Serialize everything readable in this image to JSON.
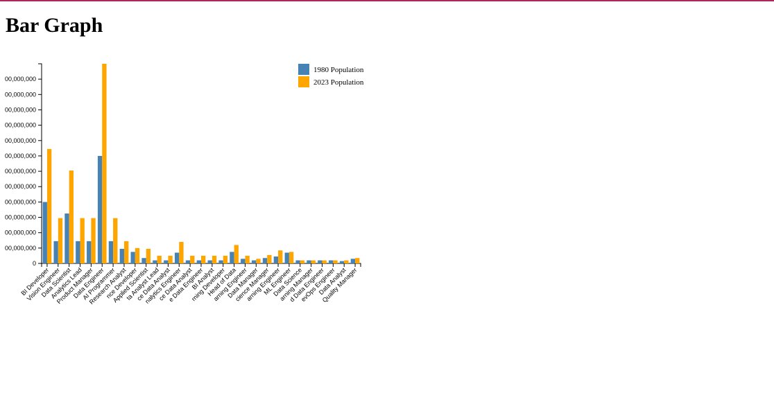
{
  "page": {
    "title": "Bar Graph",
    "accent_color": "#b0265a"
  },
  "chart_data": {
    "type": "bar",
    "title": "",
    "xlabel": "",
    "ylabel": "",
    "ylim": [
      0,
      130000000
    ],
    "y_ticks": [
      0,
      10000000,
      20000000,
      30000000,
      40000000,
      50000000,
      60000000,
      70000000,
      80000000,
      90000000,
      100000000,
      110000000,
      120000000
    ],
    "y_tick_labels": [
      "0",
      "00,000,000",
      "00,000,000",
      "00,000,000",
      "00,000,000",
      "00,000,000",
      "00,000,000",
      "00,000,000",
      "00,000,000",
      "00,000,000",
      "00,000,000",
      "00,000,000",
      "00,000,000"
    ],
    "legend_position": "top-right",
    "categories": [
      "BI Developer",
      "Vision Engineer",
      "Data Scientist",
      "Analytics Lead",
      "Product Manager",
      "Data Engineer",
      "AI Programmer",
      "Research Analyst",
      "nce Developer",
      "Applied Scientist",
      "ta Analyst Lead",
      "ce Data Analyst",
      "nalytics Engineer",
      "ce Data Analyst",
      "e Data Engineer",
      "BI Analyst",
      "rning Developer",
      "Head of Data",
      "arning Engineer",
      "Data Manager",
      "cience Manager",
      "arning Engineer",
      "ML Engineer",
      "Data Science",
      "arning Manager",
      "d Data Engineer",
      "evOps Engineer",
      "Data Analyst",
      "Quality Manager"
    ],
    "series": [
      {
        "name": "1980 Population",
        "color": "#4682b4",
        "values": [
          40000000,
          14500000,
          32500000,
          14500000,
          14500000,
          70000000,
          14500000,
          9500000,
          7500000,
          3500000,
          2000000,
          2000000,
          7000000,
          2000000,
          2000000,
          2000000,
          2000000,
          7500000,
          3000000,
          2000000,
          3500000,
          4500000,
          7000000,
          2000000,
          2000000,
          2000000,
          2000000,
          1500000,
          3000000
        ]
      },
      {
        "name": "2023 Population",
        "color": "#ffa500",
        "values": [
          74500000,
          29500000,
          60500000,
          29500000,
          29500000,
          130000000,
          29500000,
          14500000,
          10000000,
          9500000,
          5000000,
          5000000,
          14000000,
          5000000,
          5000000,
          5000000,
          5000000,
          12000000,
          5000000,
          3000000,
          5500000,
          8500000,
          7500000,
          2000000,
          2000000,
          2000000,
          2000000,
          2000000,
          3500000
        ]
      }
    ]
  }
}
